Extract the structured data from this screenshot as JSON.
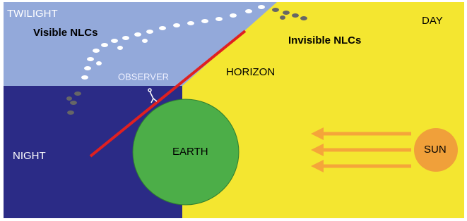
{
  "labels": {
    "twilight": "TWILIGHT",
    "visible": "Visible NLCs",
    "invisible": "Invisible NLCs",
    "day": "DAY",
    "horizon": "HORIZON",
    "observer": "OBSERVER",
    "night": "NIGHT",
    "earth": "EARTH",
    "sun": "SUN"
  }
}
